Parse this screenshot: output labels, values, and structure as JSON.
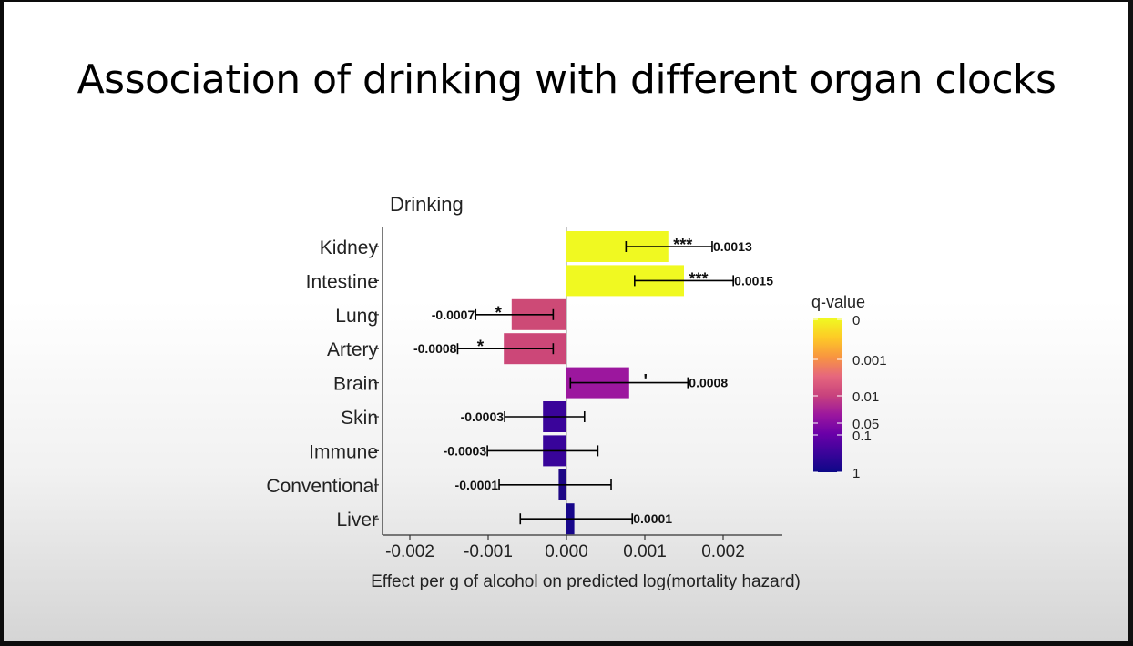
{
  "slide": {
    "title": "Association of drinking with different organ clocks"
  },
  "chart_data": {
    "type": "bar",
    "orientation": "horizontal",
    "title": "Drinking",
    "xlabel": "Effect per g of alcohol on predicted log(mortality hazard)",
    "ylabel": "",
    "xlim": [
      -0.0024,
      0.0027
    ],
    "x_ticks": [
      -0.002,
      -0.001,
      0.0,
      0.001,
      0.002
    ],
    "x_tick_labels": [
      "-0.002",
      "-0.001",
      "0.000",
      "0.001",
      "0.002"
    ],
    "grid": false,
    "categories": [
      "Kidney",
      "Intestine",
      "Lung",
      "Artery",
      "Brain",
      "Skin",
      "Immune",
      "Conventional",
      "Liver"
    ],
    "values": [
      0.0013,
      0.0015,
      -0.0007,
      -0.0008,
      0.0008,
      -0.0003,
      -0.0003,
      -0.0001,
      0.0001
    ],
    "value_labels": [
      "0.0013",
      "0.0015",
      "-0.0007",
      "-0.0008",
      "0.0008",
      "-0.0003",
      "-0.0003",
      "-0.0001",
      "0.0001"
    ],
    "ci_low": [
      0.00076,
      0.00087,
      -0.00116,
      -0.00139,
      5e-05,
      -0.00079,
      -0.00101,
      -0.00086,
      -0.00059
    ],
    "ci_high": [
      0.00186,
      0.00213,
      -0.00017,
      -0.00017,
      0.00155,
      0.00023,
      0.0004,
      0.00057,
      0.00084
    ],
    "significance": [
      "***",
      "***",
      "*",
      "*",
      "'",
      "",
      "",
      "",
      ""
    ],
    "bar_colors": [
      "#f0f921",
      "#f0f921",
      "#cd4a76",
      "#cc4778",
      "#9c179e",
      "#3a049a",
      "#38049a",
      "#1e0785",
      "#17068a"
    ],
    "legend": {
      "title": "q-value",
      "placement": "right",
      "labels": [
        "0",
        "0.001",
        "0.01",
        "0.05",
        "0.1",
        "1"
      ],
      "colormap": [
        "#0d0887",
        "#3b049a",
        "#6a00a8",
        "#9c179e",
        "#c8427d",
        "#e6677d",
        "#f89540",
        "#fdca26",
        "#f0f921"
      ]
    }
  }
}
